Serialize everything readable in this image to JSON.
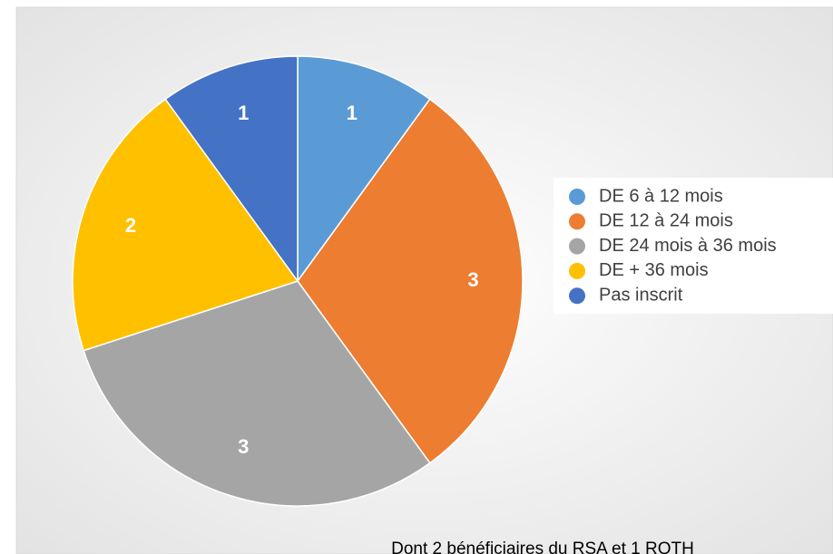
{
  "chart_data": {
    "type": "pie",
    "categories": [
      "DE 6 à 12 mois",
      "DE 12 à 24 mois",
      "DE 24 mois à 36 mois",
      "DE + 36 mois",
      "Pas inscrit"
    ],
    "values": [
      1,
      3,
      3,
      2,
      1
    ],
    "colors": [
      "#5b9bd5",
      "#ed7d31",
      "#a5a5a5",
      "#ffc000",
      "#4472c4"
    ],
    "legend": "right",
    "annotation": "Dont 2 bénéficiaires du RSA et 1 RQTH"
  }
}
